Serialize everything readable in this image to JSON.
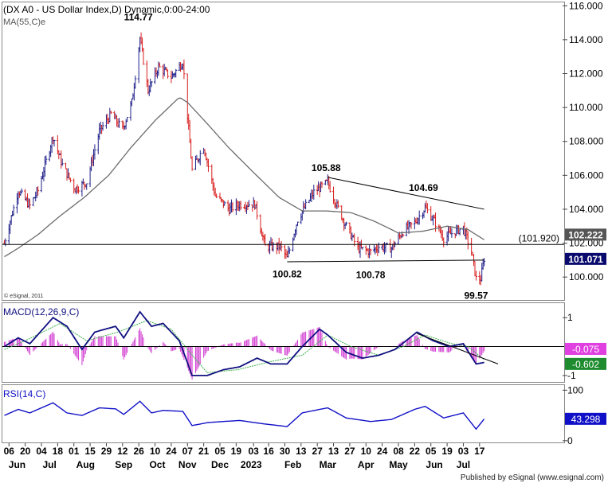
{
  "colors": {
    "background": "#ffffff",
    "bar_up": "#1f1f8a",
    "bar_down": "#d81e1e",
    "ma_line": "#6b6b6b",
    "macd_line": "#101080",
    "macd_signal": "#3cb04a",
    "macd_histogram": "#d23cd2",
    "rsi_line": "#1010c8",
    "trend_line": "#000000",
    "last_price_box": "#0a0a6e",
    "level_box": "#555555",
    "macd_value_box": "#e040e0",
    "signal_value_box": "#1e8c2e",
    "rsi_value_box": "#1010c8",
    "grid": "#bbbbbb"
  },
  "chart_data": [
    {
      "type": "candlestick",
      "title": "(DX A0 - US Dollar Index,D) Dynamic,0:00-24:00",
      "subtitle": "MA(55,C)e",
      "copyright": "© eSignal, 2011",
      "ylim": [
        98.6,
        116.2
      ],
      "y_ticks": [
        "116.000",
        "114.000",
        "112.000",
        "110.000",
        "108.000",
        "106.000",
        "104.000",
        "102.000",
        "100.000"
      ],
      "y_tick_values": [
        116,
        114,
        112,
        110,
        108,
        106,
        104,
        102,
        100
      ],
      "last_price": "101.071",
      "last_price_value": 101.071,
      "level_label": "102.222",
      "level_value": 102.222,
      "horizontal_line": {
        "label": "(101.920)",
        "value": 101.92
      },
      "annotations": [
        {
          "text": "114.77",
          "value": 114.77,
          "date": "2022-09-27"
        },
        {
          "text": "105.88",
          "value": 105.88,
          "date": "2023-03-08"
        },
        {
          "text": "104.69",
          "value": 104.69,
          "date": "2023-05-31"
        },
        {
          "text": "100.82",
          "value": 100.82,
          "date": "2023-02-01"
        },
        {
          "text": "100.78",
          "value": 100.78,
          "date": "2023-04-14"
        },
        {
          "text": "99.57",
          "value": 99.57,
          "date": "2023-07-14"
        }
      ],
      "trendlines": [
        {
          "from": {
            "date": "2023-03-08",
            "value": 105.88
          },
          "to": {
            "date": "2023-07-21",
            "value": 104.0
          }
        },
        {
          "from": {
            "date": "2023-02-01",
            "value": 100.9
          },
          "to": {
            "date": "2023-07-21",
            "value": 101.0
          }
        }
      ],
      "close_series": [
        {
          "date": "2022-06-02",
          "value": 102.0
        },
        {
          "date": "2022-06-14",
          "value": 105.1
        },
        {
          "date": "2022-06-24",
          "value": 104.2
        },
        {
          "date": "2022-07-01",
          "value": 105.1
        },
        {
          "date": "2022-07-14",
          "value": 108.3
        },
        {
          "date": "2022-07-22",
          "value": 106.6
        },
        {
          "date": "2022-08-02",
          "value": 105.2
        },
        {
          "date": "2022-08-12",
          "value": 105.6
        },
        {
          "date": "2022-08-23",
          "value": 108.6
        },
        {
          "date": "2022-09-02",
          "value": 109.6
        },
        {
          "date": "2022-09-12",
          "value": 108.7
        },
        {
          "date": "2022-09-20",
          "value": 110.3
        },
        {
          "date": "2022-09-27",
          "value": 114.1
        },
        {
          "date": "2022-10-04",
          "value": 111.0
        },
        {
          "date": "2022-10-13",
          "value": 112.4
        },
        {
          "date": "2022-10-24",
          "value": 111.8
        },
        {
          "date": "2022-11-03",
          "value": 112.7
        },
        {
          "date": "2022-11-11",
          "value": 106.3
        },
        {
          "date": "2022-11-21",
          "value": 107.7
        },
        {
          "date": "2022-12-01",
          "value": 104.8
        },
        {
          "date": "2022-12-13",
          "value": 104.0
        },
        {
          "date": "2022-12-22",
          "value": 104.3
        },
        {
          "date": "2023-01-04",
          "value": 104.3
        },
        {
          "date": "2023-01-13",
          "value": 101.8
        },
        {
          "date": "2023-01-26",
          "value": 101.8
        },
        {
          "date": "2023-02-01",
          "value": 101.1
        },
        {
          "date": "2023-02-10",
          "value": 103.4
        },
        {
          "date": "2023-02-24",
          "value": 105.0
        },
        {
          "date": "2023-03-08",
          "value": 105.6
        },
        {
          "date": "2023-03-16",
          "value": 104.2
        },
        {
          "date": "2023-03-24",
          "value": 103.0
        },
        {
          "date": "2023-04-03",
          "value": 101.7
        },
        {
          "date": "2023-04-14",
          "value": 101.5
        },
        {
          "date": "2023-04-21",
          "value": 101.8
        },
        {
          "date": "2023-05-02",
          "value": 101.7
        },
        {
          "date": "2023-05-12",
          "value": 102.7
        },
        {
          "date": "2023-05-22",
          "value": 103.2
        },
        {
          "date": "2023-05-31",
          "value": 104.1
        },
        {
          "date": "2023-06-08",
          "value": 103.3
        },
        {
          "date": "2023-06-16",
          "value": 102.3
        },
        {
          "date": "2023-06-26",
          "value": 102.7
        },
        {
          "date": "2023-07-03",
          "value": 102.9
        },
        {
          "date": "2023-07-10",
          "value": 101.5
        },
        {
          "date": "2023-07-14",
          "value": 99.9
        },
        {
          "date": "2023-07-18",
          "value": 99.9
        },
        {
          "date": "2023-07-21",
          "value": 101.1
        }
      ],
      "ma_series": [
        {
          "date": "2022-06-02",
          "value": 101.2
        },
        {
          "date": "2022-06-14",
          "value": 101.7
        },
        {
          "date": "2022-07-01",
          "value": 102.5
        },
        {
          "date": "2022-07-20",
          "value": 103.6
        },
        {
          "date": "2022-08-10",
          "value": 104.7
        },
        {
          "date": "2022-08-31",
          "value": 106.0
        },
        {
          "date": "2022-09-20",
          "value": 107.7
        },
        {
          "date": "2022-10-11",
          "value": 109.3
        },
        {
          "date": "2022-10-31",
          "value": 110.6
        },
        {
          "date": "2022-11-07",
          "value": 110.3
        },
        {
          "date": "2022-11-22",
          "value": 109.2
        },
        {
          "date": "2022-12-13",
          "value": 107.6
        },
        {
          "date": "2023-01-04",
          "value": 106.1
        },
        {
          "date": "2023-01-25",
          "value": 104.7
        },
        {
          "date": "2023-02-14",
          "value": 103.9
        },
        {
          "date": "2023-03-07",
          "value": 103.9
        },
        {
          "date": "2023-03-28",
          "value": 103.8
        },
        {
          "date": "2023-04-17",
          "value": 103.3
        },
        {
          "date": "2023-05-08",
          "value": 102.6
        },
        {
          "date": "2023-05-29",
          "value": 102.7
        },
        {
          "date": "2023-06-19",
          "value": 103.0
        },
        {
          "date": "2023-07-07",
          "value": 102.8
        },
        {
          "date": "2023-07-21",
          "value": 102.2
        }
      ]
    },
    {
      "type": "line",
      "title": "MACD(12,26,9,C)",
      "ylim": [
        -1.25,
        1.5
      ],
      "y_ticks": [
        "1",
        "-1"
      ],
      "y_tick_values": [
        1,
        -1
      ],
      "zero_line": 0,
      "macd_value": "-0.075",
      "signal_value": "-0.602",
      "trendline": {
        "from": {
          "date": "2023-05-24",
          "value": 0.45
        },
        "to": {
          "date": "2023-07-21",
          "value": -0.45
        }
      },
      "macd_series": [
        {
          "date": "2022-06-02",
          "value": 0.0
        },
        {
          "date": "2022-06-14",
          "value": 0.3
        },
        {
          "date": "2022-06-24",
          "value": 0.1
        },
        {
          "date": "2022-07-14",
          "value": 1.0
        },
        {
          "date": "2022-07-26",
          "value": 0.7
        },
        {
          "date": "2022-08-08",
          "value": -0.1
        },
        {
          "date": "2022-08-19",
          "value": 0.5
        },
        {
          "date": "2022-09-06",
          "value": 0.7
        },
        {
          "date": "2022-09-13",
          "value": 0.3
        },
        {
          "date": "2022-09-27",
          "value": 1.2
        },
        {
          "date": "2022-10-07",
          "value": 0.7
        },
        {
          "date": "2022-10-17",
          "value": 0.8
        },
        {
          "date": "2022-10-31",
          "value": 0.2
        },
        {
          "date": "2022-11-11",
          "value": -1.0
        },
        {
          "date": "2022-11-24",
          "value": -1.0
        },
        {
          "date": "2022-12-08",
          "value": -0.8
        },
        {
          "date": "2022-12-22",
          "value": -0.7
        },
        {
          "date": "2023-01-06",
          "value": -0.4
        },
        {
          "date": "2023-01-18",
          "value": -0.6
        },
        {
          "date": "2023-02-01",
          "value": -0.6
        },
        {
          "date": "2023-02-14",
          "value": 0.0
        },
        {
          "date": "2023-03-01",
          "value": 0.6
        },
        {
          "date": "2023-03-08",
          "value": 0.4
        },
        {
          "date": "2023-03-24",
          "value": -0.2
        },
        {
          "date": "2023-04-07",
          "value": -0.4
        },
        {
          "date": "2023-04-21",
          "value": -0.3
        },
        {
          "date": "2023-05-05",
          "value": -0.1
        },
        {
          "date": "2023-05-24",
          "value": 0.5
        },
        {
          "date": "2023-06-07",
          "value": 0.2
        },
        {
          "date": "2023-06-21",
          "value": 0.0
        },
        {
          "date": "2023-07-03",
          "value": 0.1
        },
        {
          "date": "2023-07-14",
          "value": -0.6
        },
        {
          "date": "2023-07-21",
          "value": -0.55
        }
      ],
      "signal_series": [
        {
          "date": "2022-06-02",
          "value": -0.1
        },
        {
          "date": "2022-06-20",
          "value": 0.2
        },
        {
          "date": "2022-07-20",
          "value": 0.8
        },
        {
          "date": "2022-08-12",
          "value": 0.2
        },
        {
          "date": "2022-09-08",
          "value": 0.5
        },
        {
          "date": "2022-10-03",
          "value": 0.9
        },
        {
          "date": "2022-10-24",
          "value": 0.6
        },
        {
          "date": "2022-11-07",
          "value": -0.1
        },
        {
          "date": "2022-11-24",
          "value": -0.9
        },
        {
          "date": "2022-12-20",
          "value": -0.8
        },
        {
          "date": "2023-01-20",
          "value": -0.5
        },
        {
          "date": "2023-02-14",
          "value": -0.3
        },
        {
          "date": "2023-03-08",
          "value": 0.4
        },
        {
          "date": "2023-03-28",
          "value": 0.0
        },
        {
          "date": "2023-04-21",
          "value": -0.3
        },
        {
          "date": "2023-05-12",
          "value": 0.0
        },
        {
          "date": "2023-05-31",
          "value": 0.4
        },
        {
          "date": "2023-06-23",
          "value": 0.1
        },
        {
          "date": "2023-07-07",
          "value": 0.0
        },
        {
          "date": "2023-07-21",
          "value": -0.45
        }
      ]
    },
    {
      "type": "line",
      "title": "RSI(14,C)",
      "ylim": [
        -5,
        110
      ],
      "y_ticks": [
        "100",
        "0"
      ],
      "y_tick_values": [
        100,
        0
      ],
      "rsi_value": "43.298",
      "rsi_series": [
        {
          "date": "2022-06-02",
          "value": 50
        },
        {
          "date": "2022-06-14",
          "value": 62
        },
        {
          "date": "2022-06-24",
          "value": 55
        },
        {
          "date": "2022-07-14",
          "value": 75
        },
        {
          "date": "2022-07-26",
          "value": 55
        },
        {
          "date": "2022-08-08",
          "value": 50
        },
        {
          "date": "2022-08-23",
          "value": 65
        },
        {
          "date": "2022-09-06",
          "value": 63
        },
        {
          "date": "2022-09-13",
          "value": 52
        },
        {
          "date": "2022-09-27",
          "value": 78
        },
        {
          "date": "2022-10-07",
          "value": 55
        },
        {
          "date": "2022-10-17",
          "value": 60
        },
        {
          "date": "2022-11-03",
          "value": 58
        },
        {
          "date": "2022-11-11",
          "value": 30
        },
        {
          "date": "2022-11-25",
          "value": 36
        },
        {
          "date": "2022-12-08",
          "value": 38
        },
        {
          "date": "2022-12-22",
          "value": 40
        },
        {
          "date": "2023-01-13",
          "value": 33
        },
        {
          "date": "2023-02-01",
          "value": 28
        },
        {
          "date": "2023-02-14",
          "value": 55
        },
        {
          "date": "2023-03-01",
          "value": 62
        },
        {
          "date": "2023-03-08",
          "value": 65
        },
        {
          "date": "2023-03-24",
          "value": 45
        },
        {
          "date": "2023-04-14",
          "value": 38
        },
        {
          "date": "2023-05-02",
          "value": 42
        },
        {
          "date": "2023-05-22",
          "value": 62
        },
        {
          "date": "2023-05-31",
          "value": 68
        },
        {
          "date": "2023-06-16",
          "value": 45
        },
        {
          "date": "2023-07-03",
          "value": 55
        },
        {
          "date": "2023-07-14",
          "value": 23
        },
        {
          "date": "2023-07-21",
          "value": 43
        }
      ]
    }
  ],
  "x_axis": {
    "day_labels": [
      {
        "text": "06",
        "date": "2022-06-06"
      },
      {
        "text": "20",
        "date": "2022-06-20"
      },
      {
        "text": "04",
        "date": "2022-07-04"
      },
      {
        "text": "18",
        "date": "2022-07-18"
      },
      {
        "text": "01",
        "date": "2022-08-01"
      },
      {
        "text": "15",
        "date": "2022-08-15"
      },
      {
        "text": "29",
        "date": "2022-08-29"
      },
      {
        "text": "12",
        "date": "2022-09-12"
      },
      {
        "text": "26",
        "date": "2022-09-26"
      },
      {
        "text": "10",
        "date": "2022-10-10"
      },
      {
        "text": "24",
        "date": "2022-10-24"
      },
      {
        "text": "07",
        "date": "2022-11-07"
      },
      {
        "text": "21",
        "date": "2022-11-21"
      },
      {
        "text": "05",
        "date": "2022-12-05"
      },
      {
        "text": "19",
        "date": "2022-12-19"
      },
      {
        "text": "03",
        "date": "2023-01-03"
      },
      {
        "text": "16",
        "date": "2023-01-16"
      },
      {
        "text": "30",
        "date": "2023-01-30"
      },
      {
        "text": "13",
        "date": "2023-02-13"
      },
      {
        "text": "27",
        "date": "2023-02-27"
      },
      {
        "text": "13",
        "date": "2023-03-13"
      },
      {
        "text": "27",
        "date": "2023-03-27"
      },
      {
        "text": "10",
        "date": "2023-04-10"
      },
      {
        "text": "24",
        "date": "2023-04-24"
      },
      {
        "text": "08",
        "date": "2023-05-08"
      },
      {
        "text": "22",
        "date": "2023-05-22"
      },
      {
        "text": "05",
        "date": "2023-06-05"
      },
      {
        "text": "19",
        "date": "2023-06-19"
      },
      {
        "text": "03",
        "date": "2023-07-03"
      },
      {
        "text": "17",
        "date": "2023-07-17"
      }
    ],
    "month_labels": [
      {
        "text": "Jun",
        "date": "2022-06-13"
      },
      {
        "text": "Jul",
        "date": "2022-07-11"
      },
      {
        "text": "Aug",
        "date": "2022-08-11"
      },
      {
        "text": "Sep",
        "date": "2022-09-13"
      },
      {
        "text": "Oct",
        "date": "2022-10-12"
      },
      {
        "text": "Nov",
        "date": "2022-11-07"
      },
      {
        "text": "Dec",
        "date": "2022-12-05"
      },
      {
        "text": "2023",
        "date": "2023-01-01"
      },
      {
        "text": "Feb",
        "date": "2023-02-06"
      },
      {
        "text": "Mar",
        "date": "2023-03-08"
      },
      {
        "text": "Apr",
        "date": "2023-04-10"
      },
      {
        "text": "May",
        "date": "2023-05-08"
      },
      {
        "text": "Jun",
        "date": "2023-06-08"
      },
      {
        "text": "Jul",
        "date": "2023-07-03"
      }
    ]
  },
  "footer": "Published by eSignal (www.esignal.com)"
}
